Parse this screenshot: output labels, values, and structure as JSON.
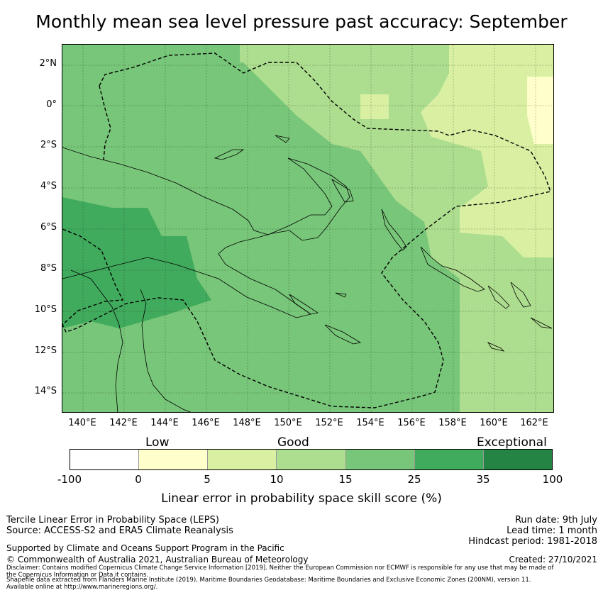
{
  "title": "Monthly mean sea level pressure past accuracy: September",
  "map": {
    "lat_labels": [
      "2°N",
      "0°",
      "2°S",
      "4°S",
      "6°S",
      "8°S",
      "10°S",
      "12°S",
      "14°S"
    ],
    "lon_labels": [
      "140°E",
      "142°E",
      "144°E",
      "146°E",
      "148°E",
      "150°E",
      "152°E",
      "154°E",
      "156°E",
      "158°E",
      "160°E",
      "162°E"
    ]
  },
  "legend": {
    "categories": [
      "Low",
      "Good",
      "Exceptional"
    ],
    "ticks": [
      "-100",
      "0",
      "5",
      "10",
      "15",
      "25",
      "35",
      "100"
    ],
    "colors": [
      "#ffffff",
      "#ffffcc",
      "#d9f0a3",
      "#addd8e",
      "#78c679",
      "#41ab5d",
      "#238443"
    ],
    "label": "Linear error in probability space skill score (%)"
  },
  "footer": {
    "left_line1": "Tercile Linear Error in Probability Space (LEPS)",
    "left_line2": "Source: ACCESS-S2 and ERA5 Climate Reanalysis",
    "support": "Supported by Climate and Oceans Support Program in the Pacific",
    "copyright": "© Commonwealth of Australia 2021, Australian Bureau of Meteorology",
    "run_date": "Run date: 9th July",
    "lead_time": "Lead time: 1 month",
    "hindcast": "Hindcast period: 1981-2018",
    "created": "Created: 27/10/2021",
    "disclaimer1": "Disclaimer: Contains modified Copernicus Climate Change Service Information [2019]. Neither the European Commission nor ECMWF is responsible for any use that may be made of",
    "disclaimer2": "the Copernicus Information or Data it contains.",
    "disclaimer3": "Shapefile data extracted from Flanders Marine Institute (2019), Maritime Boundaries Geodatabase: Maritime Boundaries and Exclusive Economic Zones (200NM), version 11.",
    "disclaimer4": "Available online at http://www.marineregions.org/."
  }
}
